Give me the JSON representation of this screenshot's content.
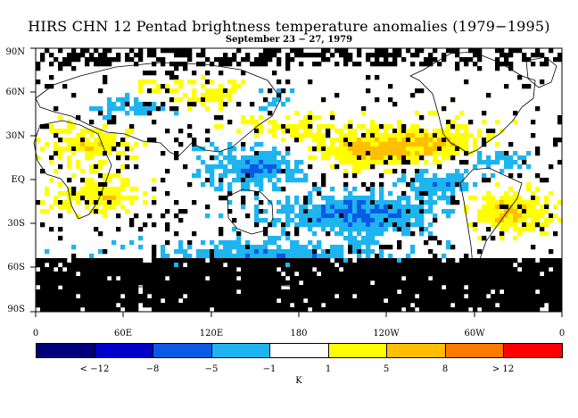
{
  "title": "HIRS CHN 12 Pentad brightness temperature anomalies (1979−1995)",
  "subtitle": "September 23 − 27, 1979",
  "lat_labels": [
    "90N",
    "60N",
    "30N",
    "EQ",
    "30S",
    "60S",
    "90S"
  ],
  "lon_labels": [
    "0",
    "60E",
    "120E",
    "180",
    "120W",
    "60W",
    "0"
  ],
  "colorbar": {
    "colors": [
      "#00007a",
      "#0000c8",
      "#0a5ae6",
      "#1eb4f0",
      "#ffffff",
      "#ffff00",
      "#ffbe00",
      "#ff7800",
      "#ff0000"
    ],
    "labels": [
      "< −12",
      "−8",
      "−5",
      "−1",
      "1",
      "5",
      "8",
      "> 12"
    ],
    "unit": "K"
  },
  "map_colors": {
    "missing": "#000000",
    "neutral": "#ffffff",
    "neg_weak": "#1eb4f0",
    "neg_mod": "#0a5ae6",
    "pos_weak": "#ffff00",
    "pos_mod": "#ffbe00"
  }
}
